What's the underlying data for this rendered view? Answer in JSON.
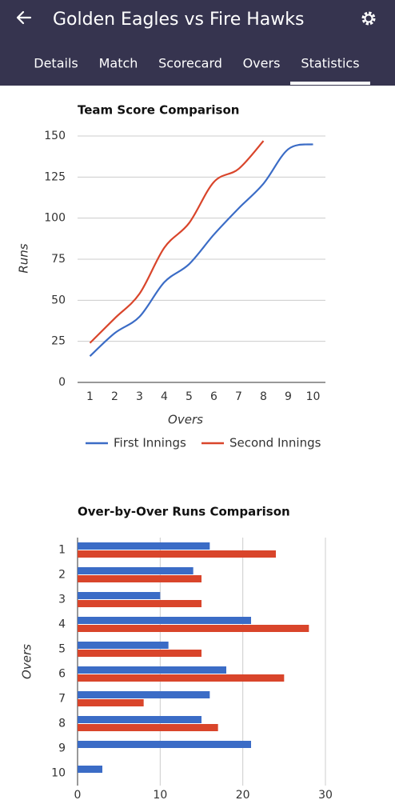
{
  "header": {
    "title": "Golden Eagles vs Fire Hawks"
  },
  "tabs": [
    "Details",
    "Match",
    "Scorecard",
    "Overs",
    "Statistics"
  ],
  "chart_data": [
    {
      "type": "line",
      "title": "Team Score Comparison",
      "x_label": "Overs",
      "y_label": "Runs",
      "categories": [
        "1",
        "2",
        "3",
        "4",
        "5",
        "6",
        "7",
        "8",
        "9",
        "10"
      ],
      "series": [
        {
          "name": "First Innings",
          "color": "#3b6cc6",
          "values": [
            16,
            30,
            40,
            61,
            72,
            90,
            106,
            121,
            142,
            145
          ]
        },
        {
          "name": "Second Innings",
          "color": "#d9452b",
          "values": [
            24,
            39,
            54,
            82,
            97,
            122,
            130,
            147,
            null,
            null
          ]
        }
      ],
      "ylim": [
        0,
        150
      ],
      "yticks": [
        0,
        25,
        50,
        75,
        100,
        125,
        150
      ],
      "grid": true,
      "legend": "bottom"
    },
    {
      "type": "hbar",
      "title": "Over-by-Over Runs Comparison",
      "y_label": "Overs",
      "categories": [
        "1",
        "2",
        "3",
        "4",
        "5",
        "6",
        "7",
        "8",
        "9",
        "10"
      ],
      "series": [
        {
          "color": "#3b6cc6",
          "values": [
            16,
            14,
            10,
            21,
            11,
            18,
            16,
            15,
            21,
            3
          ]
        },
        {
          "color": "#d9452b",
          "values": [
            24,
            15,
            15,
            28,
            15,
            25,
            8,
            17,
            null,
            null
          ]
        }
      ],
      "xlim": [
        0,
        30
      ],
      "xticks": [
        0,
        10,
        20,
        30
      ],
      "grid": true
    }
  ]
}
